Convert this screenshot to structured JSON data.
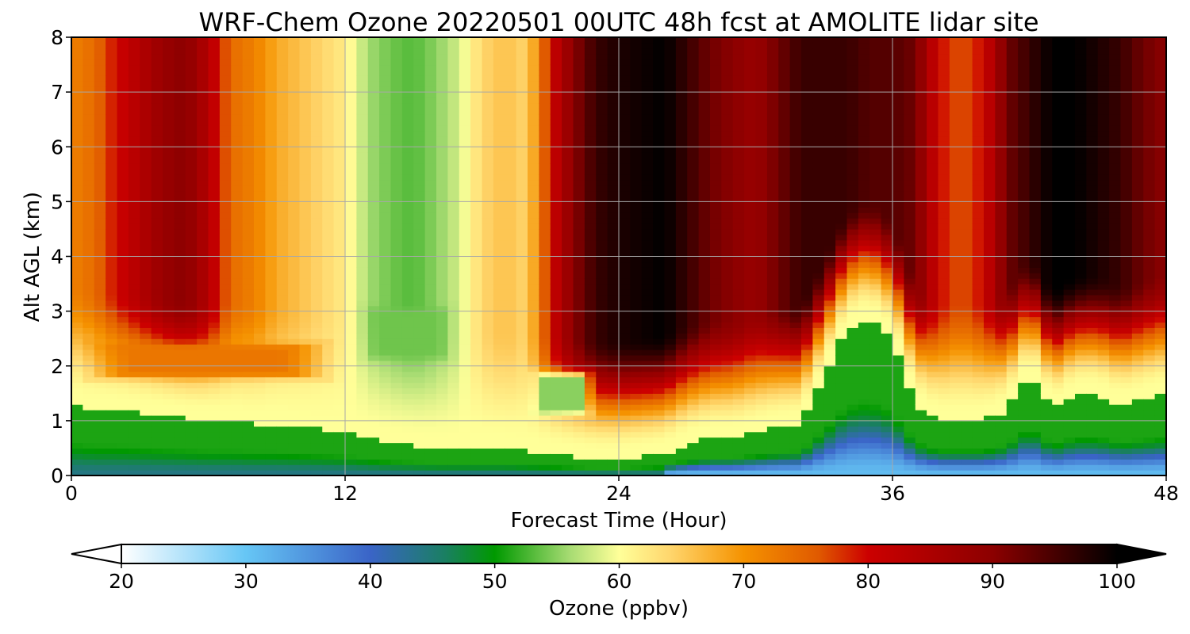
{
  "chart_data": {
    "type": "heatmap",
    "title": "WRF-Chem Ozone  20220501 00UTC 48h fcst at AMOLITE lidar site",
    "xlabel": "Forecast Time (Hour)",
    "ylabel": "Alt AGL (km)",
    "xlim": [
      0,
      48
    ],
    "ylim": [
      0,
      8
    ],
    "x_ticks": [
      "0",
      "12",
      "24",
      "36",
      "48"
    ],
    "y_ticks": [
      "0",
      "1",
      "2",
      "3",
      "4",
      "5",
      "6",
      "7",
      "8"
    ],
    "grid": true,
    "colorbar": {
      "label": "Ozone  (ppbv)",
      "range": [
        20,
        100
      ],
      "ticks": [
        "20",
        "30",
        "40",
        "50",
        "60",
        "70",
        "80",
        "90",
        "100"
      ],
      "extend": "both",
      "anchors": [
        [
          20,
          "#ffffff"
        ],
        [
          30,
          "#66c6f5"
        ],
        [
          40,
          "#3a64c7"
        ],
        [
          46,
          "#1a7f62"
        ],
        [
          50,
          "#009900"
        ],
        [
          56,
          "#a6db72"
        ],
        [
          60,
          "#ffff99"
        ],
        [
          64,
          "#ffd76e"
        ],
        [
          70,
          "#f59200"
        ],
        [
          76,
          "#e05a00"
        ],
        [
          80,
          "#cc0000"
        ],
        [
          90,
          "#8c0000"
        ],
        [
          100,
          "#000000"
        ]
      ]
    },
    "hours": [
      0,
      1,
      2,
      3,
      4,
      5,
      6,
      7,
      8,
      9,
      10,
      11,
      12,
      13,
      14,
      15,
      16,
      17,
      18,
      19,
      20,
      21,
      22,
      23,
      24,
      25,
      26,
      27,
      28,
      29,
      30,
      31,
      32,
      33,
      34,
      35,
      36,
      37,
      38,
      39,
      40,
      41,
      42,
      43,
      44,
      45,
      46,
      47,
      48
    ],
    "pbl_km": [
      1.3,
      1.2,
      1.2,
      1.15,
      1.1,
      1.05,
      1.0,
      1.0,
      0.95,
      0.95,
      0.9,
      0.85,
      0.8,
      0.7,
      0.6,
      0.55,
      0.5,
      0.5,
      0.5,
      0.5,
      0.45,
      0.4,
      0.35,
      0.3,
      0.3,
      0.35,
      0.4,
      0.6,
      0.7,
      0.7,
      0.8,
      0.9,
      0.95,
      1.8,
      2.7,
      2.9,
      2.5,
      1.3,
      1.0,
      1.0,
      1.0,
      1.2,
      1.9,
      1.2,
      1.5,
      1.5,
      1.3,
      1.4,
      1.5
    ],
    "upper_ppbv": [
      72,
      74,
      80,
      84,
      88,
      90,
      84,
      74,
      72,
      68,
      66,
      64,
      62,
      56,
      54,
      53,
      55,
      58,
      64,
      66,
      64,
      80,
      90,
      96,
      98,
      99,
      100,
      96,
      92,
      90,
      88,
      92,
      96,
      96,
      96,
      94,
      94,
      92,
      80,
      76,
      80,
      92,
      96,
      100,
      100,
      98,
      96,
      92,
      90
    ],
    "regions": [
      {
        "x0": 0,
        "x1": 12,
        "y0": 1.7,
        "y1": 2.5,
        "value": 73
      },
      {
        "x0": 12.5,
        "x1": 17,
        "y0": 2.0,
        "y1": 3.2,
        "value": 54
      },
      {
        "x0": 20,
        "x1": 23,
        "y0": 1.0,
        "y1": 2.0,
        "value": 55
      }
    ]
  }
}
